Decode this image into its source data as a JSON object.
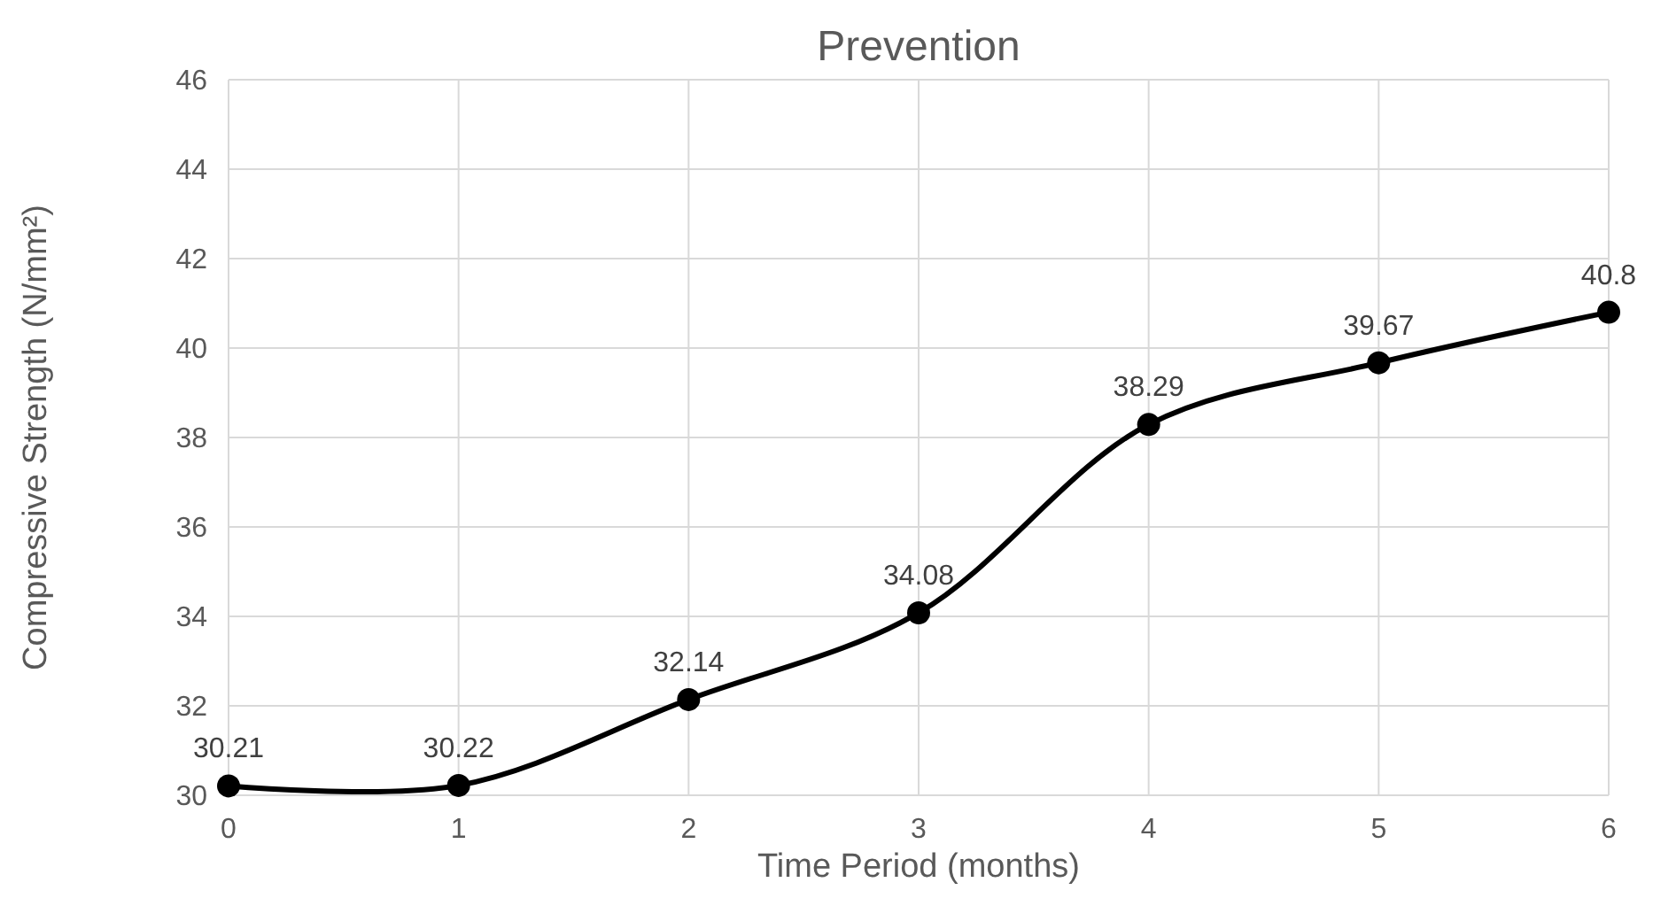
{
  "chart_data": {
    "type": "line",
    "title": "Prevention",
    "xlabel": "Time Period (months)",
    "ylabel": "Compressive Strength (N/mm²)",
    "x": [
      0,
      1,
      2,
      3,
      4,
      5,
      6
    ],
    "series": [
      {
        "color": "#000000",
        "values": [
          30.21,
          30.22,
          32.14,
          34.08,
          38.29,
          39.67,
          40.8
        ]
      }
    ],
    "xlim": [
      0,
      6
    ],
    "xticks": [
      0,
      1,
      2,
      3,
      4,
      5,
      6
    ],
    "ylim": [
      30,
      46
    ],
    "yticks": [
      30,
      32,
      34,
      36,
      38,
      40,
      42,
      44,
      46
    ],
    "grid": true,
    "marker": "circle",
    "line_style": "solid",
    "data_labels": true
  }
}
